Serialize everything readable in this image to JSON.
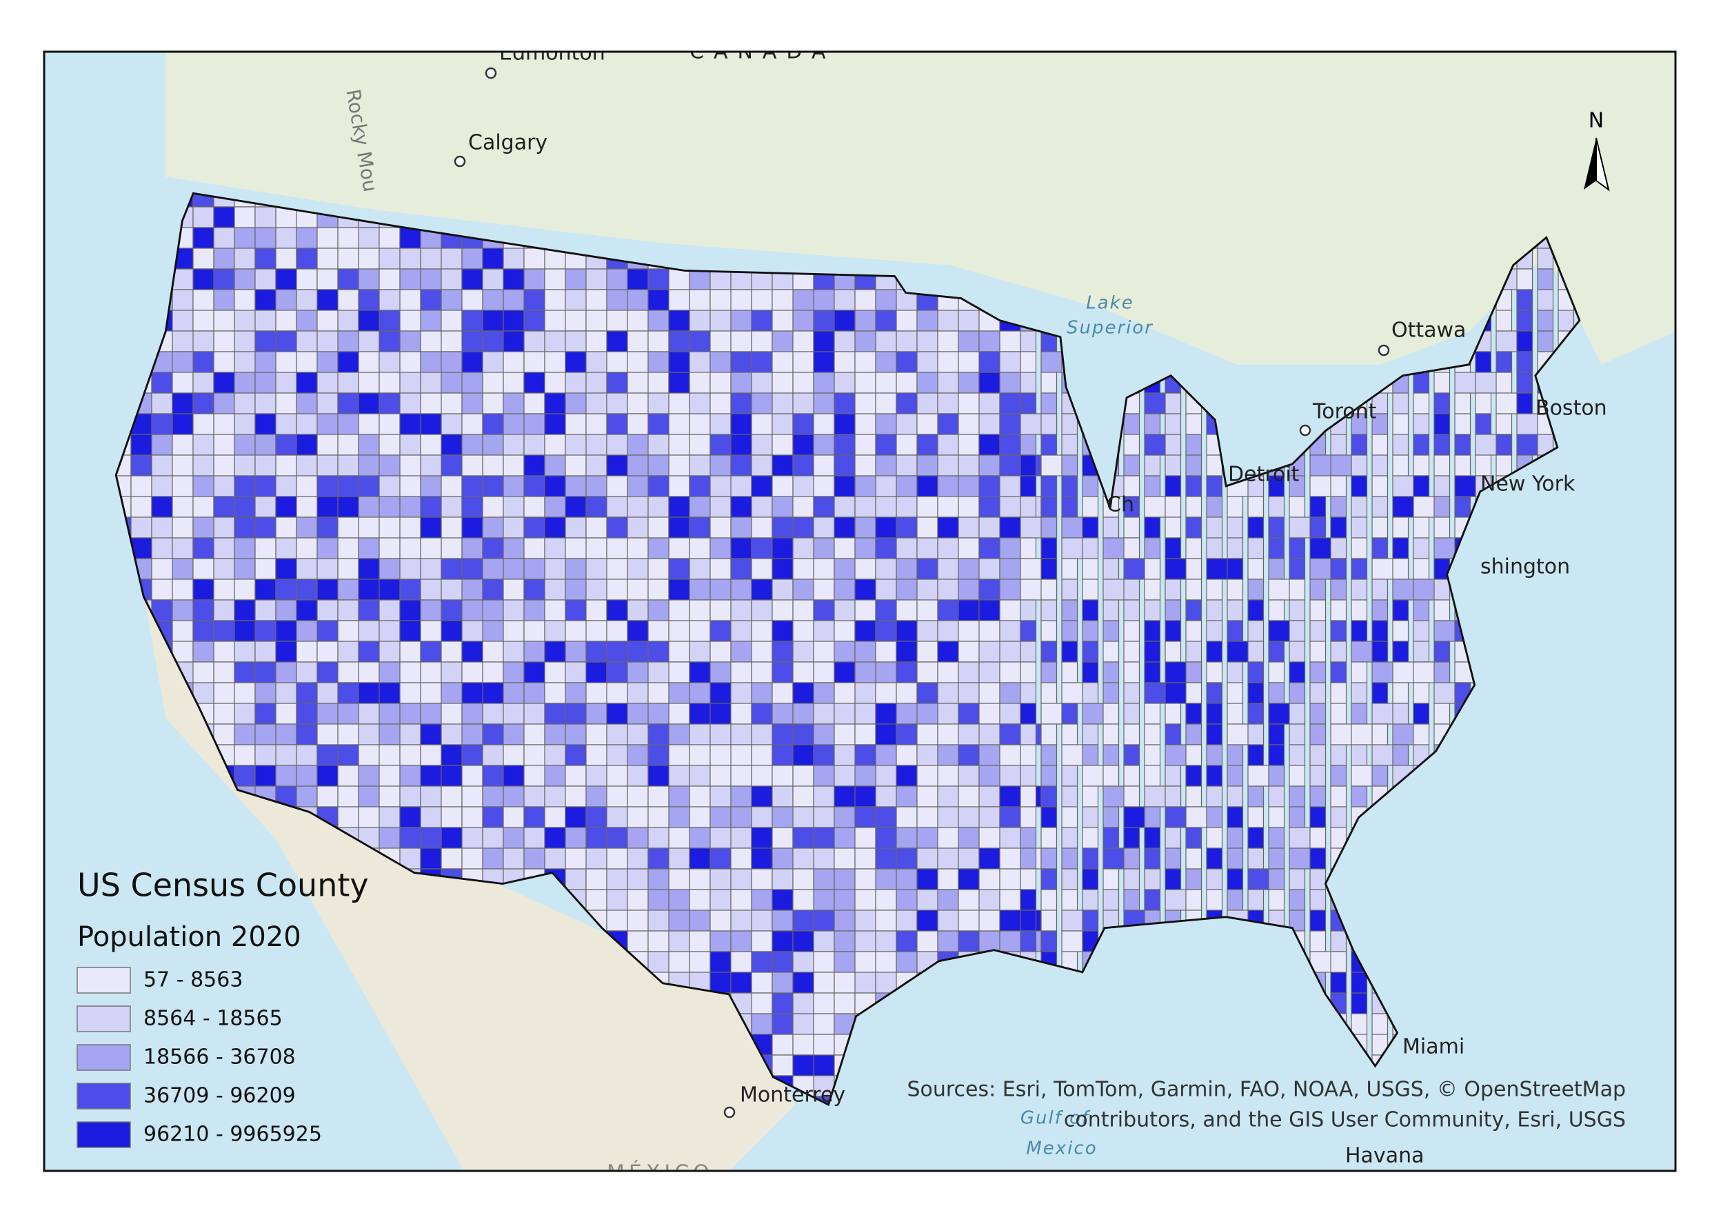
{
  "map": {
    "title": "US Census County",
    "subtitle": "Population 2020",
    "legend": [
      {
        "label": "57 - 8563",
        "color": "#e9e9fb"
      },
      {
        "label": "8564 - 18565",
        "color": "#d3d3f8"
      },
      {
        "label": "18566 - 36708",
        "color": "#a5a5f1"
      },
      {
        "label": "36709 - 96209",
        "color": "#4d4de8"
      },
      {
        "label": "96210 - 9965925",
        "color": "#1c1ce0"
      }
    ],
    "places": [
      "Edmonton",
      "CANADA",
      "Rocky Mou",
      "Calgary",
      "Ottawa",
      "Toront",
      "Boston",
      "Detroit",
      "Ch",
      "New York",
      "shington",
      "Miami",
      "Monterrey",
      "Havana",
      "MÉXICO"
    ],
    "water_labels": [
      "Lake",
      "Superior",
      "Gulf of",
      "Mexico"
    ],
    "north_arrow": "N",
    "attribution": [
      "Sources: Esri, TomTom, Garmin, FAO, NOAA, USGS, © OpenStreetMap",
      "contributors, and the GIS User Community, Esri, USGS"
    ]
  }
}
